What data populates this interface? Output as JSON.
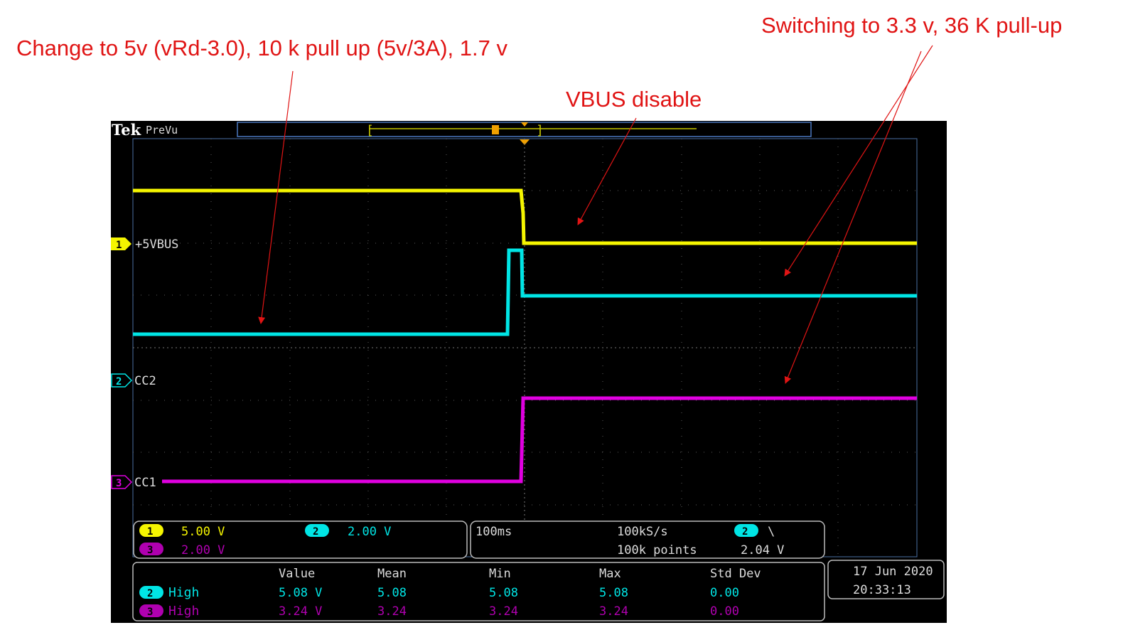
{
  "annotations": {
    "change_5v": "Change to 5v (vRd-3.0), 10 k pull up (5v/3A), 1.7 v",
    "switching": "Switching to 3.3 v,  36 K pull-up",
    "vbus_disable": "VBUS disable"
  },
  "scope": {
    "brand": "Tek",
    "mode": "PreVu",
    "channels": [
      {
        "num": "1",
        "label": "+5VBUS",
        "scale": "5.00 V",
        "color": "#f5f500"
      },
      {
        "num": "2",
        "label": "CC2",
        "scale": "2.00 V",
        "color": "#00e5e5"
      },
      {
        "num": "3",
        "label": "CC1",
        "scale": "2.00 V",
        "color": "#e000e0"
      }
    ],
    "horizontal": {
      "time_div": "100ms",
      "sample_rate": "100kS/s",
      "points": "100k points"
    },
    "trigger": {
      "channel": "2",
      "slope_icon": "falling-edge-icon",
      "slope_glyph": "\\",
      "level": "2.04 V"
    },
    "measurements": {
      "headers": [
        "Value",
        "Mean",
        "Min",
        "Max",
        "Std Dev"
      ],
      "rows": [
        {
          "ch": "2",
          "name": "High",
          "values": [
            "5.08 V",
            "5.08",
            "5.08",
            "5.08",
            "0.00"
          ]
        },
        {
          "ch": "3",
          "name": "High",
          "values": [
            "3.24 V",
            "3.24",
            "3.24",
            "3.24",
            "0.00"
          ]
        }
      ]
    },
    "date": "17 Jun  2020",
    "time": "20:33:13"
  }
}
